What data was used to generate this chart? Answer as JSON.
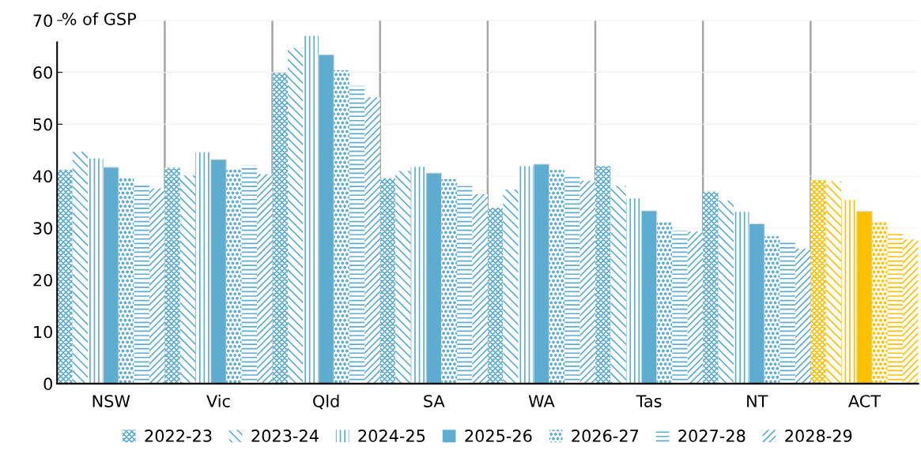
{
  "chart_data": {
    "type": "bar",
    "ylabel": "% of GSP",
    "categories": [
      "NSW",
      "Vic",
      "Qld",
      "SA",
      "WA",
      "Tas",
      "NT",
      "ACT"
    ],
    "series": [
      {
        "name": "2022-23",
        "colors": [
          "#5eacd0",
          "#5eacd0",
          "#5eacd0",
          "#5eacd0",
          "#5eacd0",
          "#5eacd0",
          "#5eacd0",
          "#ffc000"
        ],
        "values": [
          41.2,
          41.6,
          59.9,
          39.6,
          33.9,
          41.9,
          37.0,
          39.2
        ]
      },
      {
        "name": "2023-24",
        "colors": [
          "#5eacd0",
          "#5eacd0",
          "#5eacd0",
          "#5eacd0",
          "#5eacd0",
          "#5eacd0",
          "#5eacd0",
          "#ffc000"
        ],
        "values": [
          44.7,
          40.1,
          64.7,
          41.0,
          37.4,
          38.1,
          35.3,
          39.0
        ]
      },
      {
        "name": "2024-25",
        "colors": [
          "#5eacd0",
          "#5eacd0",
          "#5eacd0",
          "#5eacd0",
          "#5eacd0",
          "#5eacd0",
          "#5eacd0",
          "#ffc000"
        ],
        "values": [
          43.4,
          44.6,
          67.0,
          41.8,
          41.9,
          35.7,
          33.1,
          35.4
        ]
      },
      {
        "name": "2025-26",
        "colors": [
          "#5eacd0",
          "#5eacd0",
          "#5eacd0",
          "#5eacd0",
          "#5eacd0",
          "#5eacd0",
          "#5eacd0",
          "#ffc000"
        ],
        "values": [
          41.7,
          43.2,
          63.4,
          40.6,
          42.3,
          33.3,
          30.8,
          33.2
        ]
      },
      {
        "name": "2026-27",
        "colors": [
          "#5eacd0",
          "#5eacd0",
          "#5eacd0",
          "#5eacd0",
          "#5eacd0",
          "#5eacd0",
          "#5eacd0",
          "#ffc000"
        ],
        "values": [
          39.6,
          41.3,
          60.4,
          39.4,
          41.2,
          31.1,
          28.4,
          31.3
        ]
      },
      {
        "name": "2027-28",
        "colors": [
          "#5eacd0",
          "#5eacd0",
          "#5eacd0",
          "#5eacd0",
          "#5eacd0",
          "#5eacd0",
          "#5eacd0",
          "#ffc000"
        ],
        "values": [
          38.6,
          42.1,
          57.4,
          38.1,
          40.1,
          29.5,
          27.3,
          29.4
        ]
      },
      {
        "name": "2028-29",
        "colors": [
          "#5eacd0",
          "#5eacd0",
          "#5eacd0",
          "#5eacd0",
          "#5eacd0",
          "#5eacd0",
          "#5eacd0",
          "#ffc000"
        ],
        "values": [
          37.6,
          40.4,
          55.2,
          36.5,
          39.1,
          29.3,
          26.0,
          27.8
        ]
      }
    ],
    "ylim": [
      0,
      70
    ],
    "yticks": [
      0,
      10,
      20,
      30,
      40,
      50,
      60,
      70
    ],
    "grid": "y",
    "legend": "bottom"
  }
}
